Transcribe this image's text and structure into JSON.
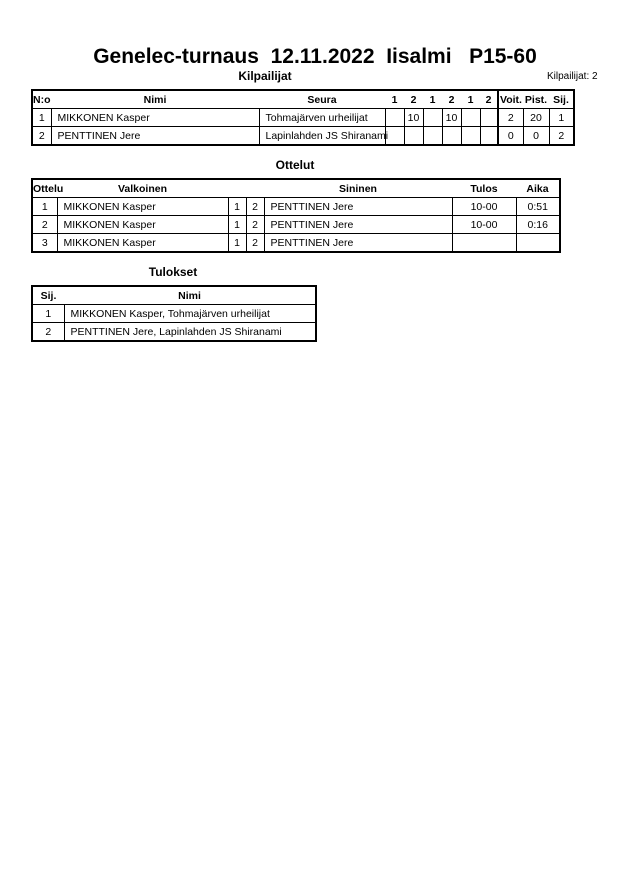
{
  "title": "Genelec-turnaus  12.11.2022  Iisalmi   P15-60",
  "competitors": {
    "heading": "Kilpailijat",
    "count_label": "Kilpailijat: 2",
    "headers": [
      "N:o",
      "Nimi",
      "Seura",
      "1",
      "2",
      "1",
      "2",
      "1",
      "2",
      "Voit.",
      "Pist.",
      "Sij."
    ],
    "rows": [
      [
        "1",
        "MIKKONEN Kasper",
        "Tohmajärven urheilijat",
        "",
        "10",
        "",
        "10",
        "",
        "",
        "2",
        "20",
        "1"
      ],
      [
        "2",
        "PENTTINEN Jere",
        "Lapinlahden JS Shiranami",
        "",
        "",
        "",
        "",
        "",
        "",
        "0",
        "0",
        "2"
      ]
    ]
  },
  "matches": {
    "heading": "Ottelut",
    "headers": [
      "Ottelu",
      "Valkoinen",
      "",
      "",
      "Sininen",
      "Tulos",
      "Aika"
    ],
    "rows": [
      [
        "1",
        "MIKKONEN Kasper",
        "1",
        "2",
        "PENTTINEN Jere",
        "10-00",
        "0:51"
      ],
      [
        "2",
        "MIKKONEN Kasper",
        "1",
        "2",
        "PENTTINEN Jere",
        "10-00",
        "0:16"
      ],
      [
        "3",
        "MIKKONEN Kasper",
        "1",
        "2",
        "PENTTINEN Jere",
        "",
        ""
      ]
    ]
  },
  "results": {
    "heading": "Tulokset",
    "headers": [
      "Sij.",
      "Nimi"
    ],
    "rows": [
      [
        "1",
        "MIKKONEN Kasper, Tohmajärven urheilijat"
      ],
      [
        "2",
        "PENTTINEN Jere, Lapinlahden JS Shiranami"
      ]
    ]
  }
}
